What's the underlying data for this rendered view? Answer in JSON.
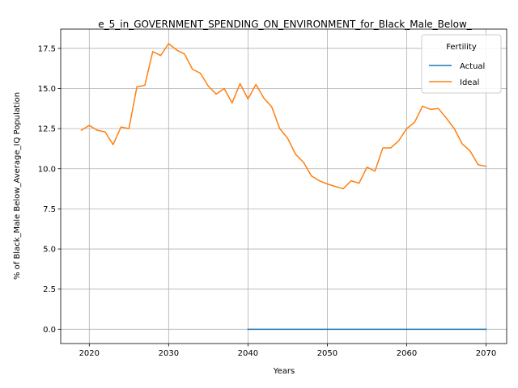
{
  "chart_data": {
    "type": "line",
    "title": "e_5_in_GOVERNMENT_SPENDING_ON_ENVIRONMENT_for_Black_Male_Below_",
    "xlabel": "Years",
    "ylabel": "% of Black_Male Below_Average_IQ Population",
    "xlim": [
      2016.4,
      2072.6
    ],
    "ylim": [
      -0.89,
      18.7
    ],
    "xticks": [
      2020,
      2030,
      2040,
      2050,
      2060,
      2070
    ],
    "yticks": [
      0.0,
      2.5,
      5.0,
      7.5,
      10.0,
      12.5,
      15.0,
      17.5
    ],
    "xtick_labels": [
      "2020",
      "2030",
      "2040",
      "2050",
      "2060",
      "2070"
    ],
    "ytick_labels": [
      "0.0",
      "2.5",
      "5.0",
      "7.5",
      "10.0",
      "12.5",
      "15.0",
      "17.5"
    ],
    "grid": true,
    "legend": {
      "title": "Fertility",
      "placement": "top-right"
    },
    "series": [
      {
        "name": "Actual",
        "color": "#1f77b4",
        "x": [
          2040,
          2041,
          2042,
          2043,
          2044,
          2045,
          2046,
          2047,
          2048,
          2049,
          2050,
          2051,
          2052,
          2053,
          2054,
          2055,
          2056,
          2057,
          2058,
          2059,
          2060,
          2061,
          2062,
          2063,
          2064,
          2065,
          2066,
          2067,
          2068,
          2069,
          2070
        ],
        "y": [
          0,
          0,
          0,
          0,
          0,
          0,
          0,
          0,
          0,
          0,
          0,
          0,
          0,
          0,
          0,
          0,
          0,
          0,
          0,
          0,
          0,
          0,
          0,
          0,
          0,
          0,
          0,
          0,
          0,
          0,
          0
        ]
      },
      {
        "name": "Ideal",
        "color": "#ff7f0e",
        "x": [
          2019,
          2020,
          2021,
          2022,
          2023,
          2024,
          2025,
          2026,
          2027,
          2028,
          2029,
          2030,
          2031,
          2032,
          2033,
          2034,
          2035,
          2036,
          2037,
          2038,
          2039,
          2040,
          2041,
          2042,
          2043,
          2044,
          2045,
          2046,
          2047,
          2048,
          2049,
          2050,
          2051,
          2052,
          2053,
          2054,
          2055,
          2056,
          2057,
          2058,
          2059,
          2060,
          2061,
          2062,
          2063,
          2064,
          2065,
          2066,
          2067,
          2068,
          2069,
          2070
        ],
        "y": [
          12.4,
          12.7,
          12.4,
          12.3,
          11.5,
          12.6,
          12.5,
          15.1,
          15.2,
          17.3,
          17.05,
          17.8,
          17.4,
          17.15,
          16.2,
          15.95,
          15.15,
          14.65,
          15.0,
          14.1,
          15.3,
          14.35,
          15.25,
          14.4,
          13.85,
          12.5,
          11.9,
          10.9,
          10.4,
          9.55,
          9.25,
          9.05,
          8.9,
          8.75,
          9.25,
          9.1,
          10.1,
          9.85,
          11.3,
          11.3,
          11.75,
          12.5,
          12.9,
          13.9,
          13.7,
          13.75,
          13.15,
          12.5,
          11.55,
          11.1,
          10.25,
          10.15
        ]
      }
    ]
  }
}
